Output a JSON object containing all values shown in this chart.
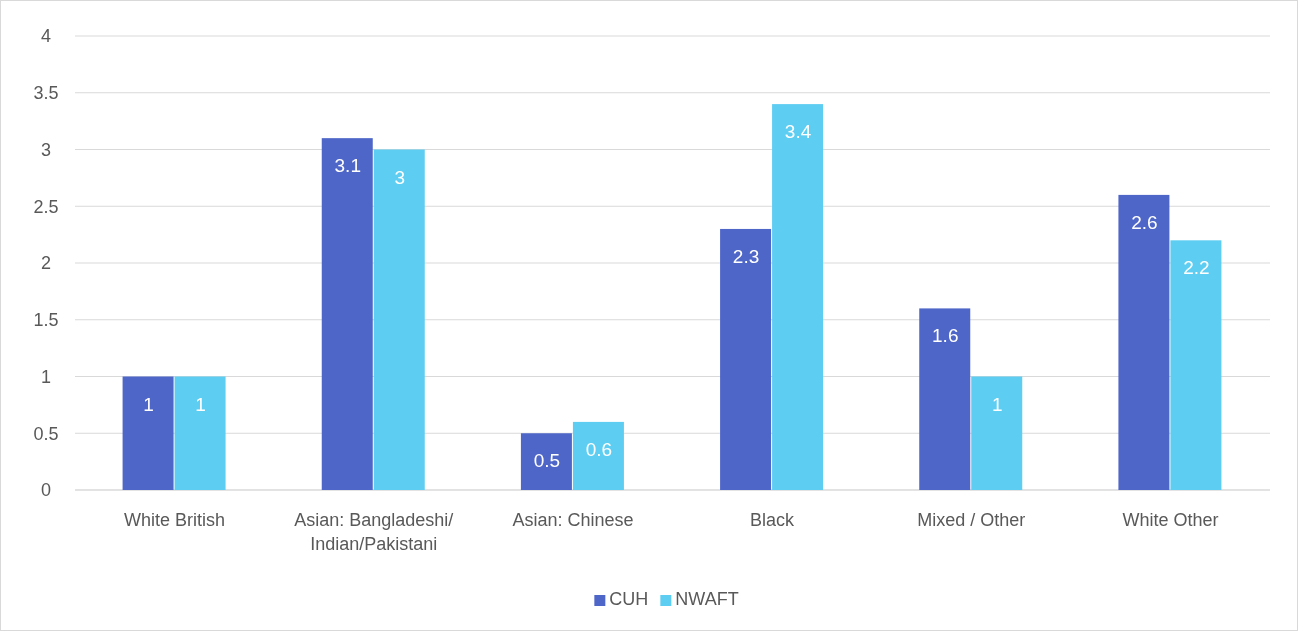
{
  "chart_data": {
    "type": "bar",
    "categories": [
      "White British",
      "Asian: Bangladeshi/ Indian/Pakistani",
      "Asian: Chinese",
      "Black",
      "Mixed / Other",
      "White Other"
    ],
    "series": [
      {
        "name": "CUH",
        "color": "#4f66c9",
        "values": [
          1,
          3.1,
          0.5,
          2.3,
          1.6,
          2.6
        ]
      },
      {
        "name": "NWAFT",
        "color": "#5ecdf2",
        "values": [
          1,
          3,
          0.6,
          3.4,
          1,
          2.2
        ]
      }
    ],
    "ylim": [
      0,
      4
    ],
    "yticks": [
      0,
      0.5,
      1,
      1.5,
      2,
      2.5,
      3,
      3.5,
      4
    ],
    "grid": "y",
    "legend": "bottom",
    "data_labels": true
  }
}
